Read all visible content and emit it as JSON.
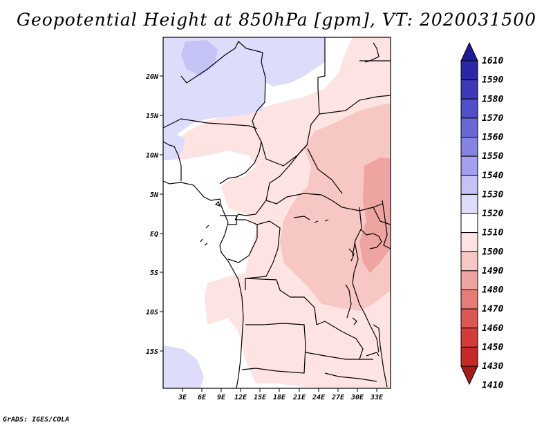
{
  "map": {
    "title": "Geopotential Height at 850hPa [gpm], VT: 2020031500",
    "variable": "Geopotential Height",
    "level": "850hPa",
    "units": "gpm",
    "valid_time": "2020031500",
    "lon_ticks": [
      "3E",
      "6E",
      "9E",
      "12E",
      "15E",
      "18E",
      "21E",
      "24E",
      "27E",
      "30E",
      "33E"
    ],
    "lat_ticks": [
      "20N",
      "15N",
      "10N",
      "5N",
      "EQ",
      "5S",
      "10S",
      "15S"
    ],
    "colors": {
      "ocean": "#ffffff",
      "boundary": "#000000"
    }
  },
  "colorbar": {
    "levels": [
      "1610",
      "1590",
      "1580",
      "1570",
      "1560",
      "1550",
      "1540",
      "1530",
      "1520",
      "1510",
      "1500",
      "1490",
      "1480",
      "1470",
      "1460",
      "1450",
      "1430",
      "1410"
    ],
    "colors": [
      "#1c1a98",
      "#2a28a8",
      "#3c3ab9",
      "#5250c8",
      "#6a68d5",
      "#8583e2",
      "#a3a1ee",
      "#c4c3f6",
      "#dedcfb",
      "#ffffff",
      "#fde4e2",
      "#f7c7c3",
      "#eea4a0",
      "#e47c78",
      "#dc5854",
      "#d43c38",
      "#c62a26",
      "#a81c18"
    ],
    "labels": [
      "1610",
      "1590",
      "1580",
      "1570",
      "1560",
      "1550",
      "1540",
      "1530",
      "1520",
      "1510",
      "1500",
      "1490",
      "1480",
      "1470",
      "1460",
      "1450",
      "1430",
      "1410"
    ]
  },
  "footer": "GrADS: IGES/COLA"
}
